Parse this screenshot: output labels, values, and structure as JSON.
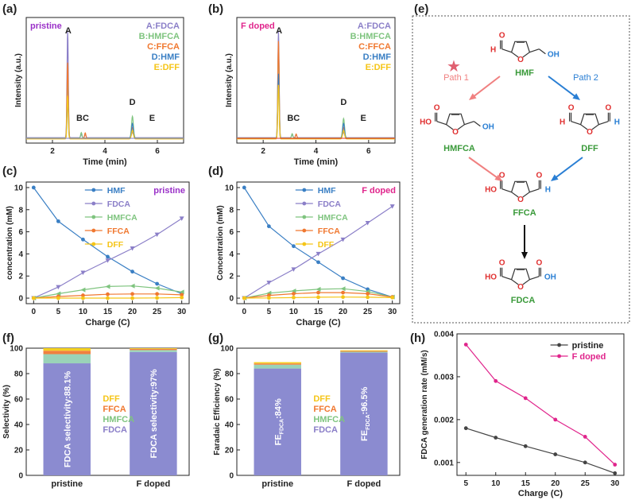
{
  "colors": {
    "FDCA": "#8b7fc8",
    "HMFCA": "#7fc47f",
    "FFCA": "#f07830",
    "HMF": "#3a7fc4",
    "DFF": "#f5c518",
    "pristine": "#444444",
    "fdoped": "#e0258c",
    "pinkLine": "#e06070",
    "pathPink": "#f08080",
    "pathBlue": "#2a7fd4",
    "red": "#e03030",
    "green": "#3a9a3a",
    "barFDCA": "#8b8bd0",
    "barHMFCA": "#9ad3b8",
    "barFFCA": "#f08040",
    "barDFF": "#f5d020"
  },
  "panels": {
    "a": "(a)",
    "b": "(b)",
    "c": "(c)",
    "d": "(d)",
    "e": "(e)",
    "f": "(f)",
    "g": "(g)",
    "h": "(h)"
  },
  "chart_data": [
    {
      "id": "a",
      "type": "line",
      "title": "pristine",
      "xlabel": "Time (min)",
      "ylabel": "Intensity (a.u.)",
      "xlim": [
        1,
        7
      ],
      "xticks": [
        2,
        4,
        6
      ],
      "legend": [
        "A:FDCA",
        "B:HMFCA",
        "C:FFCA",
        "D:HMF",
        "E:DFF"
      ],
      "peak_labels": [
        {
          "text": "A",
          "x": 2.6
        },
        {
          "text": "BC",
          "x": 3.15
        },
        {
          "text": "D",
          "x": 5.05
        },
        {
          "text": "E",
          "x": 5.8
        }
      ],
      "series": [
        {
          "name": "A:FDCA",
          "peaks": [
            [
              2.58,
              0.98
            ],
            [
              3.1,
              0.03
            ],
            [
              3.25,
              0.03
            ],
            [
              5.05,
              0.05
            ]
          ]
        },
        {
          "name": "B:HMFCA",
          "peaks": [
            [
              2.58,
              0.55
            ],
            [
              3.1,
              0.05
            ],
            [
              5.05,
              0.2
            ]
          ]
        },
        {
          "name": "C:FFCA",
          "peaks": [
            [
              2.58,
              0.7
            ],
            [
              3.25,
              0.05
            ],
            [
              5.05,
              0.1
            ]
          ]
        },
        {
          "name": "D:HMF",
          "peaks": [
            [
              2.58,
              0.35
            ],
            [
              5.05,
              0.14
            ]
          ]
        },
        {
          "name": "E:DFF",
          "peaks": [
            [
              2.58,
              0.4
            ],
            [
              5.05,
              0.08
            ]
          ]
        }
      ]
    },
    {
      "id": "b",
      "type": "line",
      "title": "F doped",
      "xlabel": "Time (min)",
      "ylabel": "Intensity (a.u.)",
      "xlim": [
        1,
        7
      ],
      "xticks": [
        2,
        4,
        6
      ],
      "legend": [
        "A:FDCA",
        "B:HMFCA",
        "C:FFCA",
        "D:HMF",
        "E:DFF"
      ],
      "peak_labels": [
        {
          "text": "A",
          "x": 2.6
        },
        {
          "text": "BC",
          "x": 3.15
        },
        {
          "text": "D",
          "x": 5.05
        },
        {
          "text": "E",
          "x": 5.8
        }
      ],
      "series": [
        {
          "name": "A:FDCA",
          "peaks": [
            [
              2.58,
              0.98
            ],
            [
              3.1,
              0.03
            ],
            [
              3.25,
              0.03
            ],
            [
              5.05,
              0.05
            ]
          ]
        },
        {
          "name": "B:HMFCA",
          "peaks": [
            [
              2.58,
              0.85
            ],
            [
              3.1,
              0.04
            ],
            [
              5.05,
              0.18
            ]
          ]
        },
        {
          "name": "C:FFCA",
          "peaks": [
            [
              2.58,
              0.9
            ],
            [
              3.25,
              0.04
            ],
            [
              5.05,
              0.1
            ]
          ]
        },
        {
          "name": "D:HMF",
          "peaks": [
            [
              2.58,
              0.6
            ],
            [
              5.05,
              0.14
            ]
          ]
        },
        {
          "name": "E:DFF",
          "peaks": [
            [
              2.58,
              0.5
            ],
            [
              5.05,
              0.08
            ]
          ]
        }
      ]
    },
    {
      "id": "c",
      "type": "line",
      "title": "pristine",
      "xlabel": "Charge (C)",
      "ylabel": "concentration (mM)",
      "xlim": [
        -1.5,
        31.5
      ],
      "ylim": [
        -0.5,
        10.5
      ],
      "xticks": [
        0,
        5,
        10,
        15,
        20,
        25,
        30
      ],
      "yticks": [
        0,
        2,
        4,
        6,
        8,
        10
      ],
      "x": [
        0,
        5,
        10,
        15,
        20,
        25,
        30
      ],
      "series": [
        {
          "name": "HMF",
          "values": [
            10,
            6.95,
            5.3,
            3.75,
            2.4,
            1.3,
            0.4
          ]
        },
        {
          "name": "FDCA",
          "values": [
            0,
            1.0,
            2.3,
            3.4,
            4.5,
            5.75,
            7.2
          ]
        },
        {
          "name": "HMFCA",
          "values": [
            0,
            0.4,
            0.75,
            1.05,
            1.1,
            0.9,
            0.55
          ]
        },
        {
          "name": "FFCA",
          "values": [
            0,
            0.15,
            0.25,
            0.35,
            0.38,
            0.38,
            0.3
          ]
        },
        {
          "name": "DFF",
          "values": [
            0,
            0,
            0,
            0,
            0,
            0.02,
            0.05
          ]
        }
      ]
    },
    {
      "id": "d",
      "type": "line",
      "title": "F doped",
      "xlabel": "Charge (C)",
      "ylabel": "Concentration (mM)",
      "xlim": [
        -1.5,
        31.5
      ],
      "ylim": [
        -0.5,
        10.5
      ],
      "xticks": [
        0,
        5,
        10,
        15,
        20,
        25,
        30
      ],
      "yticks": [
        0,
        2,
        4,
        6,
        8,
        10
      ],
      "x": [
        0,
        5,
        10,
        15,
        20,
        25,
        30
      ],
      "series": [
        {
          "name": "HMF",
          "values": [
            10,
            6.5,
            4.7,
            3.25,
            1.8,
            0.8,
            0.1
          ]
        },
        {
          "name": "FDCA",
          "values": [
            0,
            1.4,
            2.6,
            4.0,
            5.3,
            6.8,
            8.3
          ]
        },
        {
          "name": "HMFCA",
          "values": [
            0,
            0.45,
            0.65,
            0.8,
            0.85,
            0.6,
            0.1
          ]
        },
        {
          "name": "FFCA",
          "values": [
            0,
            0.25,
            0.4,
            0.5,
            0.5,
            0.4,
            0.1
          ]
        },
        {
          "name": "DFF",
          "values": [
            0,
            0.02,
            0.05,
            0.08,
            0.1,
            0.08,
            0.05
          ]
        }
      ]
    },
    {
      "id": "f",
      "type": "bar",
      "stacked": true,
      "xlabel": "",
      "ylabel": "Selectivity (%)",
      "ylim": [
        0,
        100
      ],
      "yticks": [
        0,
        20,
        40,
        60,
        80,
        100
      ],
      "categories": [
        "pristine",
        "F doped"
      ],
      "series": [
        {
          "name": "FDCA",
          "values": [
            88.1,
            97
          ]
        },
        {
          "name": "HMFCA",
          "values": [
            7.2,
            1.5
          ]
        },
        {
          "name": "FFCA",
          "values": [
            2.7,
            1.0
          ]
        },
        {
          "name": "DFF",
          "values": [
            2.0,
            0.5
          ]
        }
      ],
      "bar_labels": [
        "FDCA selectivity:88.1%",
        "FDCA selectivity:97%"
      ],
      "legend": [
        "DFF",
        "FFCA",
        "HMFCA",
        "FDCA"
      ]
    },
    {
      "id": "g",
      "type": "bar",
      "stacked": true,
      "xlabel": "",
      "ylabel": "Faradaic Efficiency (%)",
      "ylim": [
        0,
        100
      ],
      "yticks": [
        0,
        20,
        40,
        60,
        80,
        100
      ],
      "categories": [
        "pristine",
        "F doped"
      ],
      "series": [
        {
          "name": "FDCA",
          "values": [
            84,
            96.5
          ]
        },
        {
          "name": "HMFCA",
          "values": [
            3,
            0.7
          ]
        },
        {
          "name": "FFCA",
          "values": [
            1,
            0.6
          ]
        },
        {
          "name": "DFF",
          "values": [
            1,
            0.5
          ]
        }
      ],
      "bar_labels": [
        {
          "main": "FE",
          "sub": "FDCA",
          "rest": ":84%"
        },
        {
          "main": "FE",
          "sub": "FDCA",
          "rest": ":96.5%"
        }
      ],
      "legend": [
        "DFF",
        "FFCA",
        "HMFCA",
        "FDCA"
      ]
    },
    {
      "id": "h",
      "type": "line",
      "xlabel": "Charge (C)",
      "ylabel": "FDCA generation rate (mM/s)",
      "xlim": [
        3.5,
        31.5
      ],
      "ylim": [
        0.0007,
        0.004
      ],
      "xticks": [
        5,
        10,
        15,
        20,
        25,
        30
      ],
      "yticks": [
        0.001,
        0.002,
        0.003,
        0.004
      ],
      "ytick_labels": [
        "0.001",
        "0.002",
        "0.003",
        "0.004"
      ],
      "x": [
        5,
        10,
        15,
        20,
        25,
        30
      ],
      "series": [
        {
          "name": "pristine",
          "values": [
            0.0018,
            0.00158,
            0.00138,
            0.00119,
            0.001,
            0.00075
          ]
        },
        {
          "name": "F doped",
          "values": [
            0.00375,
            0.0029,
            0.0025,
            0.002,
            0.0016,
            0.00095
          ]
        }
      ]
    }
  ],
  "scheme": {
    "labels": {
      "hmf": "HMF",
      "hmfca": "HMFCA",
      "dff": "DFF",
      "ffca": "FFCA",
      "fdca": "FDCA",
      "path1": "Path 1",
      "path2": "Path 2"
    },
    "atoms": {
      "H": "H",
      "O": "O",
      "OH": "OH",
      "HO": "HO"
    },
    "star": "★"
  }
}
